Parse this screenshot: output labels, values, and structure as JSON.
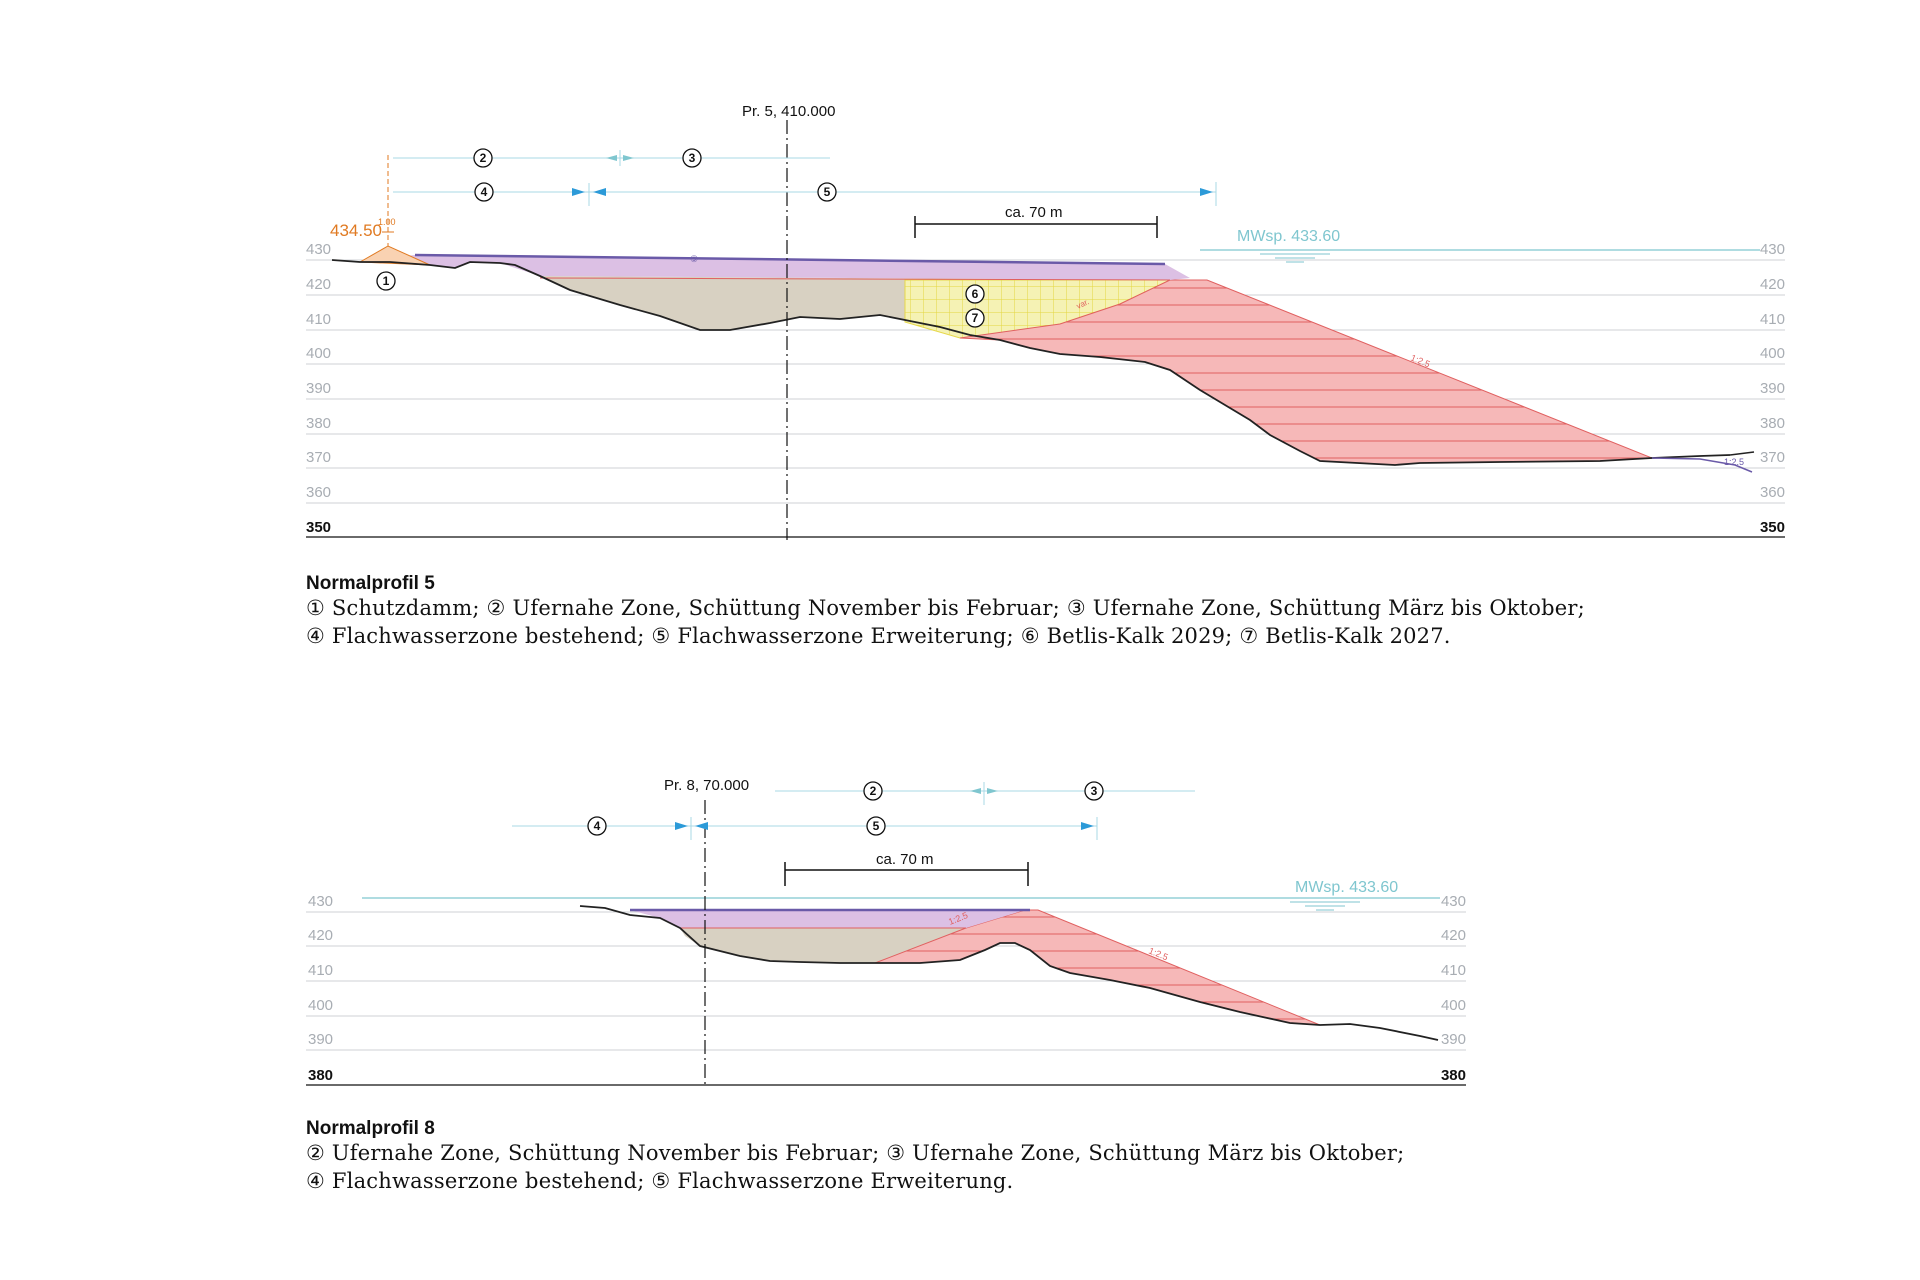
{
  "profile5": {
    "station": "Pr. 5, 410.000",
    "dimension": "ca. 70 m",
    "water_level": "MWsp. 433.60",
    "dam_height": "434.50",
    "dam_width": "1.00",
    "slope_label": "1:2.5",
    "slope_label_small": "1:2.5",
    "var_label": "var.",
    "zone_numbers": [
      "1",
      "2",
      "3",
      "4",
      "5",
      "6",
      "7"
    ],
    "elevations": [
      "430",
      "420",
      "410",
      "400",
      "390",
      "380",
      "370",
      "360"
    ],
    "base": "350",
    "caption": {
      "title": "Normalprofil 5",
      "line1": "① Schutzdamm; ② Ufernahe Zone, Schüttung November bis Februar; ③ Ufernahe Zone, Schüttung März bis Oktober;",
      "line2": "④ Flachwasserzone bestehend; ⑤ Flachwasserzone Erweiterung; ⑥ Betlis-Kalk 2029; ⑦ Betlis-Kalk 2027."
    }
  },
  "profile8": {
    "station": "Pr. 8, 70.000",
    "dimension": "ca. 70 m",
    "water_level": "MWsp. 433.60",
    "slope_label": "1:2.5",
    "zone_numbers": [
      "2",
      "3",
      "4",
      "5"
    ],
    "elevations": [
      "430",
      "420",
      "410",
      "400",
      "390"
    ],
    "base": "380",
    "caption": {
      "title": "Normalprofil 8",
      "line1": "② Ufernahe Zone, Schüttung November bis Februar; ③ Ufernahe Zone, Schüttung März bis Oktober;",
      "line2": "④ Flachwasserzone bestehend; ⑤ Flachwasserzone Erweiterung."
    }
  },
  "colors": {
    "grid": "#cfd2d6",
    "elev_text": "#a8adb3",
    "purple_fill": "#dcc0e4",
    "purple_line": "#6a5aa8",
    "beige_fill": "#d8d1c2",
    "red_fill": "#f6b8b8",
    "red_line": "#e06060",
    "yellow_fill": "#f3f0a8",
    "yellow_line": "#e6d84a",
    "orange": "#e07a22",
    "water": "#7fc6cf",
    "dim_line": "#a9d8e6",
    "arrow": "#2c9ad8"
  }
}
